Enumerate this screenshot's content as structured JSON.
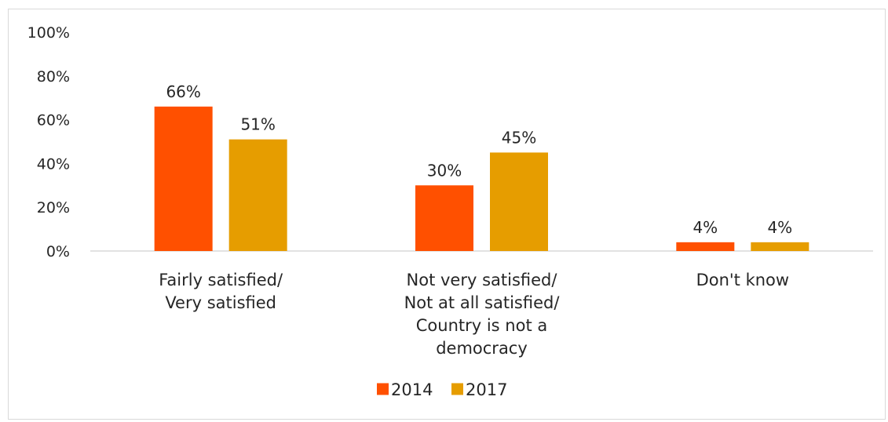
{
  "chart_data": {
    "type": "bar",
    "categories": [
      [
        "Fairly satisfied/",
        "Very satisfied"
      ],
      [
        "Not very satisfied/",
        "Not at all satisfied/",
        "Country is not a",
        "democracy"
      ],
      [
        "Don't know"
      ]
    ],
    "series": [
      {
        "name": "2014",
        "color": "#FF5000",
        "values": [
          66,
          30,
          4
        ],
        "labels": [
          "66%",
          "30%",
          "4%"
        ]
      },
      {
        "name": "2017",
        "color": "#E69D00",
        "values": [
          51,
          45,
          4
        ],
        "labels": [
          "51%",
          "45%",
          "4%"
        ]
      }
    ],
    "ylim": [
      0,
      100
    ],
    "yticks": [
      0,
      20,
      40,
      60,
      80,
      100
    ],
    "ytick_labels": [
      "0%",
      "20%",
      "40%",
      "60%",
      "80%",
      "100%"
    ],
    "title": "",
    "xlabel": "",
    "ylabel": "",
    "grid": false,
    "legend": "bottom-center",
    "axis_color": "#d9d9d9"
  }
}
